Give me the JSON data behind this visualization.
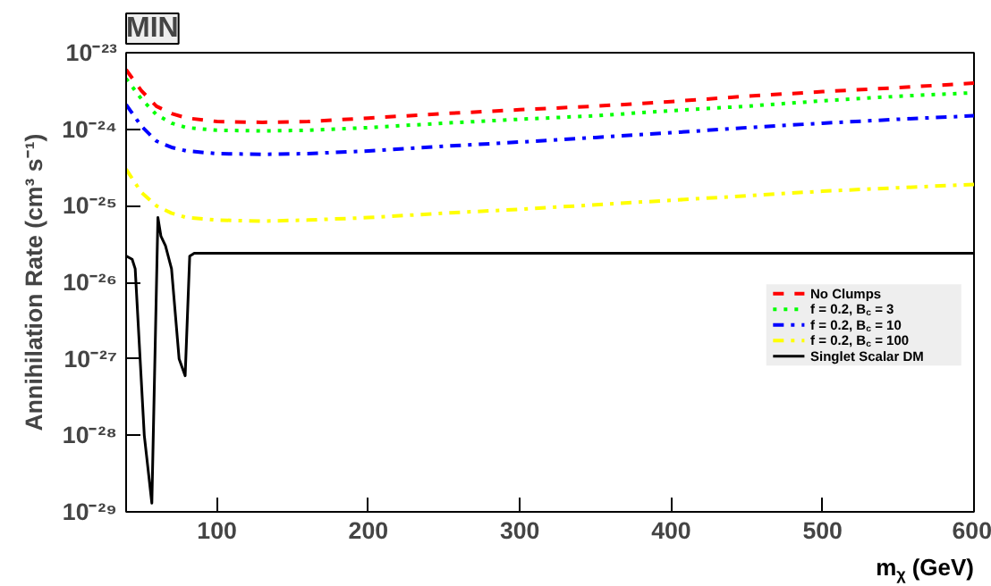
{
  "chart_data": {
    "type": "line",
    "title": "MIN",
    "xlabel": "m$_{χ}$ (GeV)",
    "ylabel": "Annihilation Rate (cm³ s⁻¹)",
    "x": [
      40,
      50,
      60,
      70,
      80,
      100,
      130,
      160,
      200,
      250,
      300,
      350,
      400,
      450,
      500,
      550,
      600
    ],
    "series": [
      {
        "name": "No Clumps",
        "color": "#ff0000",
        "line_style": "dashed",
        "values": [
          6e-24,
          3.2e-24,
          2e-24,
          1.6e-24,
          1.4e-24,
          1.26e-24,
          1.23e-24,
          1.26e-24,
          1.4e-24,
          1.6e-24,
          1.8e-24,
          2e-24,
          2.3e-24,
          2.7e-24,
          3.1e-24,
          3.5e-24,
          4e-24
        ]
      },
      {
        "name": "f = 0.2, B$_{c}$ = 3",
        "color": "#00ff00",
        "line_style": "dotted",
        "values": [
          4.6e-24,
          2.5e-24,
          1.55e-24,
          1.2e-24,
          1.05e-24,
          9.7e-25,
          9.5e-25,
          9.7e-25,
          1.05e-24,
          1.2e-24,
          1.35e-24,
          1.5e-24,
          1.75e-24,
          2e-24,
          2.35e-24,
          2.7e-24,
          3e-24
        ]
      },
      {
        "name": "f = 0.2, B$_{c}$ = 10",
        "color": "#0000ff",
        "line_style": "dashdot",
        "values": [
          2.1e-24,
          1.1e-24,
          7e-25,
          5.8e-25,
          5.2e-25,
          4.8e-25,
          4.7e-25,
          4.8e-25,
          5.2e-25,
          6e-25,
          6.8e-25,
          7.8e-25,
          9e-25,
          1.05e-24,
          1.2e-24,
          1.35e-24,
          1.5e-24
        ]
      },
      {
        "name": "f = 0.2, B$_{c}$ = 100",
        "color": "#ffff00",
        "line_style": "dashdot",
        "values": [
          3e-25,
          1.5e-25,
          1e-25,
          8e-26,
          7e-26,
          6.5e-26,
          6.3e-26,
          6.5e-26,
          7e-26,
          8e-26,
          9e-26,
          1.03e-25,
          1.18e-25,
          1.35e-25,
          1.55e-25,
          1.72e-25,
          1.9e-25
        ]
      },
      {
        "name": "Singlet Scalar DM",
        "color": "#000000",
        "line_style": "solid",
        "x": [
          40,
          44,
          46,
          52,
          57,
          61,
          63,
          66,
          70,
          75,
          79,
          82,
          85,
          120,
          200,
          300,
          400,
          500,
          600
        ],
        "values": [
          2.2e-26,
          2e-26,
          1.5e-26,
          1e-28,
          1.3e-29,
          7e-26,
          4e-26,
          3e-26,
          1.5e-26,
          1e-27,
          6e-28,
          2.2e-26,
          2.4e-26,
          2.4e-26,
          2.4e-26,
          2.4e-26,
          2.4e-26,
          2.4e-26,
          2.4e-26
        ]
      }
    ],
    "log": "y",
    "xlim": [
      40,
      600
    ],
    "ylim": [
      1e-29,
      1e-23
    ],
    "xticks": [
      100,
      200,
      300,
      400,
      500,
      600
    ],
    "yticks": [
      {
        "value": 1e-29,
        "label": "10⁻²⁹"
      },
      {
        "value": 1e-28,
        "label": "10⁻²⁸"
      },
      {
        "value": 1e-27,
        "label": "10⁻²⁷"
      },
      {
        "value": 1e-26,
        "label": "10⁻²⁶"
      },
      {
        "value": 1e-25,
        "label": "10⁻²⁵"
      },
      {
        "value": 1e-24,
        "label": "10⁻²⁴"
      },
      {
        "value": 1e-23,
        "label": "10⁻²³"
      }
    ],
    "grid": false,
    "legend": "right"
  }
}
